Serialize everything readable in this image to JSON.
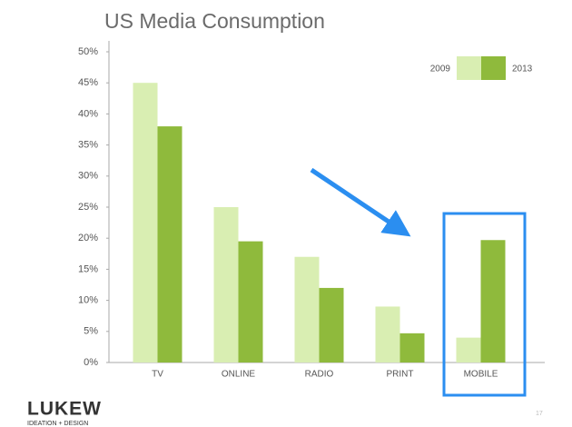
{
  "chart_data": {
    "type": "bar",
    "title": "US Media Consumption",
    "categories": [
      "TV",
      "ONLINE",
      "RADIO",
      "PRINT",
      "MOBILE"
    ],
    "series": [
      {
        "name": "2009",
        "color": "#d9eeb2",
        "values": [
          45,
          25,
          17,
          9,
          4
        ]
      },
      {
        "name": "2013",
        "color": "#8fba3c",
        "values": [
          38,
          19.5,
          12,
          4.7,
          19.7
        ]
      }
    ],
    "ylim": [
      0,
      50
    ],
    "yticks": [
      {
        "value": 0,
        "label": "0%"
      },
      {
        "value": 5,
        "label": "5%"
      },
      {
        "value": 10,
        "label": "10%"
      },
      {
        "value": 15,
        "label": "15%"
      },
      {
        "value": 20,
        "label": "20%"
      },
      {
        "value": 25,
        "label": "25%"
      },
      {
        "value": 30,
        "label": "30%"
      },
      {
        "value": 35,
        "label": "35%"
      },
      {
        "value": 40,
        "label": "40%"
      },
      {
        "value": 45,
        "label": "45%"
      },
      {
        "value": 50,
        "label": "50%"
      }
    ],
    "grid": false,
    "legend": "top-right"
  },
  "footer": {
    "logo": "LUKEW",
    "logo_tagline": "IDEATION + DESIGN",
    "page_number": "17"
  }
}
